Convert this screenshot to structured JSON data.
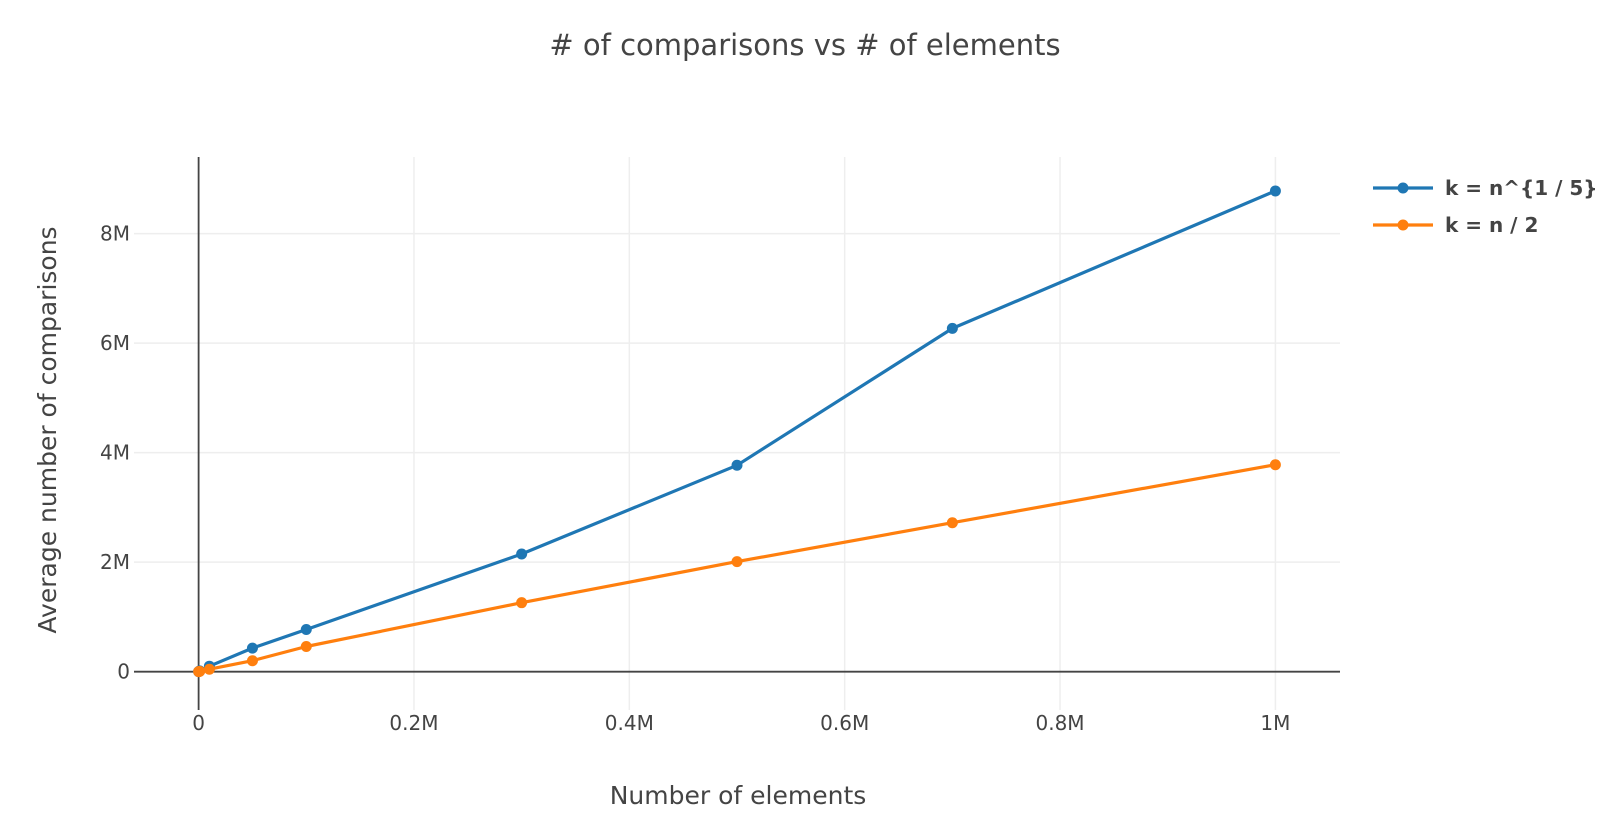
{
  "chart_data": {
    "type": "line",
    "title": "# of comparisons vs # of elements",
    "xlabel": "Number of elements",
    "ylabel": "Average number of comparisons",
    "xlim": [
      -60000,
      1060000
    ],
    "ylim": [
      -700000,
      9400000
    ],
    "x_ticks": [
      {
        "value": 0,
        "label": "0"
      },
      {
        "value": 200000,
        "label": "0.2M"
      },
      {
        "value": 400000,
        "label": "0.4M"
      },
      {
        "value": 600000,
        "label": "0.6M"
      },
      {
        "value": 800000,
        "label": "0.8M"
      },
      {
        "value": 1000000,
        "label": "1M"
      }
    ],
    "y_ticks": [
      {
        "value": 0,
        "label": "0"
      },
      {
        "value": 2000000,
        "label": "2M"
      },
      {
        "value": 4000000,
        "label": "4M"
      },
      {
        "value": 6000000,
        "label": "6M"
      },
      {
        "value": 8000000,
        "label": "8M"
      }
    ],
    "grid": true,
    "legend_position": "top-right",
    "series": [
      {
        "name": "k = n^{1 / 5}",
        "color": "#1f77b4",
        "x": [
          0,
          1000,
          10000,
          50000,
          100000,
          300000,
          500000,
          700000,
          1000000
        ],
        "y": [
          0,
          15000,
          100000,
          430000,
          770000,
          2150000,
          3770000,
          6270000,
          8780000
        ]
      },
      {
        "name": "k = n / 2",
        "color": "#ff7f0e",
        "x": [
          0,
          1000,
          10000,
          50000,
          100000,
          300000,
          500000,
          700000,
          1000000
        ],
        "y": [
          0,
          5000,
          45000,
          200000,
          460000,
          1260000,
          2010000,
          2720000,
          3780000
        ]
      }
    ]
  }
}
